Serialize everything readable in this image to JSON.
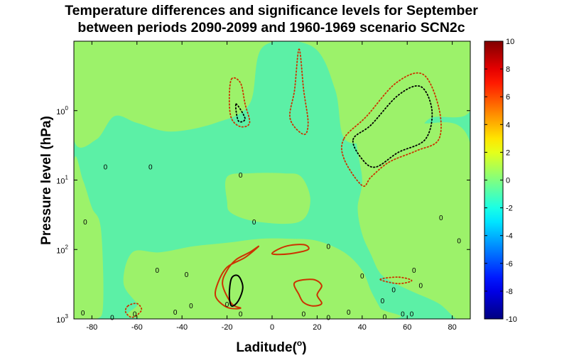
{
  "chart_data": {
    "type": "heatmap",
    "title_lines": [
      "Temperature differences and significance levels for September",
      "between periods 2090-2099 and 1960-1969 scenario SCN2c"
    ],
    "xlabel_text": "Laditude(",
    "xlabel_sup": "o",
    "xlabel_close": ")",
    "ylabel": "Pressure level (hPa)",
    "x_range": [
      -88,
      88
    ],
    "x_ticks": [
      -80,
      -60,
      -40,
      -20,
      0,
      20,
      40,
      60,
      80
    ],
    "y_scale": "log",
    "y_range_hPa": [
      0.1,
      1000
    ],
    "y_direction": "reversed",
    "y_ticks": [
      {
        "value": 1,
        "base": "10",
        "exp": "0"
      },
      {
        "value": 10,
        "base": "10",
        "exp": "1"
      },
      {
        "value": 100,
        "base": "10",
        "exp": "2"
      },
      {
        "value": 1000,
        "base": "10",
        "exp": "3"
      }
    ],
    "colorbar": {
      "min": -10,
      "max": 10,
      "ticks": [
        "10",
        "8",
        "6",
        "4",
        "2",
        "0",
        "-2",
        "-4",
        "-6",
        "-8",
        "-10"
      ],
      "colormap": "jet"
    },
    "fill_levels": [
      {
        "range": [
          -2,
          0
        ],
        "color": "#5cf0a6"
      },
      {
        "range": [
          0,
          2
        ],
        "color": "#9cf26a"
      }
    ],
    "regions": [
      {
        "level": "0 to 2",
        "points": [
          [
            -88,
            0.1
          ],
          [
            88,
            0.1
          ],
          [
            88,
            1
          ],
          [
            70,
            1.3
          ],
          [
            62,
            3
          ],
          [
            52,
            4
          ],
          [
            44,
            3
          ],
          [
            32,
            2.5
          ],
          [
            28,
            0.5
          ],
          [
            18,
            0.12
          ],
          [
            -4,
            0.12
          ],
          [
            -10,
            0.8
          ],
          [
            -25,
            1.5
          ],
          [
            -45,
            2
          ],
          [
            -60,
            1.5
          ],
          [
            -70,
            1.2
          ],
          [
            -78,
            2.6
          ],
          [
            -88,
            2.6
          ]
        ]
      },
      {
        "level": "0 to 2",
        "points": [
          [
            -88,
            6
          ],
          [
            -84,
            10
          ],
          [
            -80,
            25
          ],
          [
            -76,
            50
          ],
          [
            -75,
            600
          ],
          [
            -78,
            1000
          ],
          [
            -88,
            1000
          ]
        ]
      },
      {
        "level": "0 to 2",
        "points": [
          [
            -20,
            9
          ],
          [
            -10,
            8
          ],
          [
            5,
            8
          ],
          [
            13,
            9
          ],
          [
            17,
            20
          ],
          [
            12,
            40
          ],
          [
            -6,
            40
          ],
          [
            -18,
            30
          ],
          [
            -20,
            20
          ]
        ]
      },
      {
        "level": "0 to 2",
        "points": [
          [
            -62,
            110
          ],
          [
            -50,
            110
          ],
          [
            -35,
            90
          ],
          [
            -20,
            80
          ],
          [
            -5,
            70
          ],
          [
            8,
            70
          ],
          [
            20,
            75
          ],
          [
            32,
            110
          ],
          [
            40,
            200
          ],
          [
            44,
            400
          ],
          [
            48,
            700
          ],
          [
            50,
            1000
          ],
          [
            -55,
            1000
          ],
          [
            -60,
            600
          ],
          [
            -66,
            300
          ]
        ]
      },
      {
        "level": "0 to 2",
        "points": [
          [
            38,
            2
          ],
          [
            52,
            1.5
          ],
          [
            66,
            1.5
          ],
          [
            88,
            3
          ],
          [
            88,
            1000
          ],
          [
            82,
            1000
          ],
          [
            74,
            600
          ],
          [
            62,
            400
          ],
          [
            54,
            300
          ],
          [
            48,
            220
          ],
          [
            44,
            120
          ],
          [
            40,
            60
          ],
          [
            38,
            25
          ],
          [
            40,
            10
          ]
        ]
      }
    ],
    "significance_contours": [
      {
        "style": "solid",
        "color": "#cc3300",
        "points": [
          [
            -24,
            300
          ],
          [
            -20,
            180
          ],
          [
            -12,
            130
          ],
          [
            -6,
            90
          ],
          [
            -10,
            110
          ],
          [
            -16,
            140
          ],
          [
            -20,
            200
          ],
          [
            -22,
            320
          ],
          [
            -18,
            600
          ],
          [
            -14,
            700
          ],
          [
            -20,
            680
          ],
          [
            -25,
            480
          ]
        ]
      },
      {
        "style": "solid",
        "color": "#000000",
        "points": [
          [
            -18,
            260
          ],
          [
            -15,
            240
          ],
          [
            -13,
            350
          ],
          [
            -15,
            550
          ],
          [
            -18,
            650
          ],
          [
            -19,
            450
          ]
        ]
      },
      {
        "style": "solid",
        "color": "#cc3300",
        "points": [
          [
            0,
            115
          ],
          [
            6,
            90
          ],
          [
            14,
            85
          ],
          [
            16,
            100
          ],
          [
            8,
            115
          ]
        ]
      },
      {
        "style": "solid",
        "color": "#cc3300",
        "points": [
          [
            10,
            300
          ],
          [
            18,
            270
          ],
          [
            22,
            330
          ],
          [
            20,
            450
          ],
          [
            22,
            600
          ],
          [
            18,
            650
          ],
          [
            14,
            580
          ],
          [
            12,
            450
          ]
        ]
      },
      {
        "style": "dotted",
        "color": "#cc3300",
        "points": [
          [
            -18,
            0.35
          ],
          [
            -14,
            0.4
          ],
          [
            -12,
            0.8
          ],
          [
            -10,
            1.5
          ],
          [
            -14,
            1.7
          ],
          [
            -18,
            1.3
          ],
          [
            -19,
            0.7
          ]
        ]
      },
      {
        "style": "dotted",
        "color": "#cc3300",
        "points": [
          [
            12,
            0.13
          ],
          [
            14,
            0.5
          ],
          [
            16,
            1.5
          ],
          [
            14,
            2.2
          ],
          [
            8,
            1.3
          ],
          [
            10,
            0.5
          ]
        ]
      },
      {
        "style": "dotted",
        "color": "#cc3300",
        "points": [
          [
            32,
            2.5
          ],
          [
            42,
            1.2
          ],
          [
            55,
            0.4
          ],
          [
            67,
            0.3
          ],
          [
            74,
            0.9
          ],
          [
            74,
            2.6
          ],
          [
            64,
            3.8
          ],
          [
            52,
            5.5
          ],
          [
            44,
            9
          ],
          [
            40,
            12
          ],
          [
            32,
            5
          ]
        ]
      },
      {
        "style": "dotted",
        "color": "#000000",
        "points": [
          [
            36,
            2.6
          ],
          [
            44,
            1.6
          ],
          [
            56,
            0.6
          ],
          [
            66,
            0.45
          ],
          [
            71,
            1.0
          ],
          [
            68,
            2.6
          ],
          [
            56,
            4
          ],
          [
            46,
            6.5
          ],
          [
            40,
            5
          ]
        ]
      },
      {
        "style": "dotted",
        "color": "#cc3300",
        "points": [
          [
            -64,
            650
          ],
          [
            -60,
            600
          ],
          [
            -58,
            750
          ],
          [
            -62,
            950
          ],
          [
            -65,
            800
          ]
        ]
      },
      {
        "style": "dotted",
        "color": "#000000",
        "points": [
          [
            -16,
            0.8
          ],
          [
            -12,
            1.3
          ],
          [
            -15,
            1.4
          ]
        ]
      },
      {
        "style": "dotted",
        "color": "#cc3300",
        "points": [
          [
            48,
            270
          ],
          [
            56,
            250
          ],
          [
            62,
            280
          ],
          [
            56,
            310
          ]
        ]
      }
    ],
    "zero_labels": [
      {
        "text": "0",
        "lon": -74,
        "p": 6.5
      },
      {
        "text": "0",
        "lon": -54,
        "p": 6.5
      },
      {
        "text": "0",
        "lon": -14,
        "p": 8.5
      },
      {
        "text": "0",
        "lon": -83,
        "p": 40
      },
      {
        "text": "0",
        "lon": -8,
        "p": 40
      },
      {
        "text": "0",
        "lon": 75,
        "p": 35
      },
      {
        "text": "0",
        "lon": 83,
        "p": 75
      },
      {
        "text": "0",
        "lon": 25,
        "p": 90
      },
      {
        "text": "0",
        "lon": -51,
        "p": 200
      },
      {
        "text": "0",
        "lon": -38,
        "p": 230
      },
      {
        "text": "0",
        "lon": 40,
        "p": 240
      },
      {
        "text": "0",
        "lon": 63,
        "p": 200
      },
      {
        "text": "0",
        "lon": 54,
        "p": 380
      },
      {
        "text": "0",
        "lon": 66,
        "p": 330
      },
      {
        "text": "0",
        "lon": -36,
        "p": 650
      },
      {
        "text": "0",
        "lon": -20,
        "p": 620
      },
      {
        "text": "0",
        "lon": -14,
        "p": 850
      },
      {
        "text": "0",
        "lon": -43,
        "p": 800
      },
      {
        "text": "0",
        "lon": 14,
        "p": 850
      },
      {
        "text": "0",
        "lon": 34,
        "p": 800
      },
      {
        "text": "0",
        "lon": 49,
        "p": 550
      },
      {
        "text": "0",
        "lon": 58,
        "p": 850
      },
      {
        "text": "0",
        "lon": 62,
        "p": 850
      },
      {
        "text": "0",
        "lon": -84,
        "p": 820
      },
      {
        "text": "0",
        "lon": -61,
        "p": 850
      },
      {
        "text": "0",
        "lon": 25,
        "p": 950
      },
      {
        "text": "0",
        "lon": -71,
        "p": 950
      },
      {
        "text": "0",
        "lon": 50,
        "p": 930
      }
    ]
  }
}
